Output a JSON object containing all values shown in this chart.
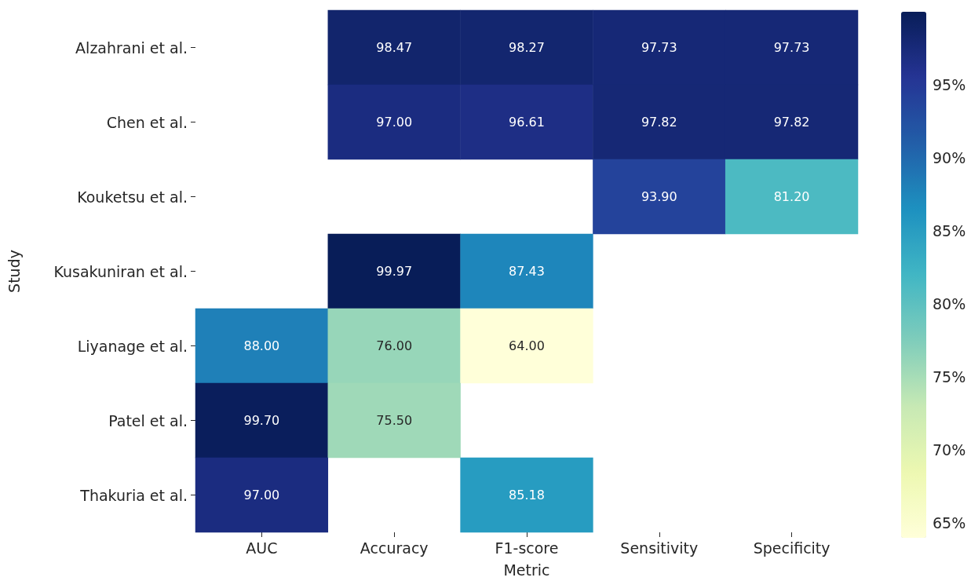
{
  "chart_data": {
    "type": "heatmap",
    "xlabel": "Metric",
    "ylabel": "Study",
    "categories": [
      "AUC",
      "Accuracy",
      "F1-score",
      "Sensitivity",
      "Specificity"
    ],
    "y_categories": [
      "Alzahrani et al.",
      "Chen et al.",
      "Kouketsu et al.",
      "Kusakuniran et al.",
      "Liyanage et al.",
      "Patel et al.",
      "Thakuria et al."
    ],
    "cells": [
      [
        null,
        98.47,
        98.27,
        97.73,
        97.73
      ],
      [
        null,
        97.0,
        96.61,
        97.82,
        97.82
      ],
      [
        null,
        null,
        null,
        93.9,
        81.2
      ],
      [
        null,
        99.97,
        87.43,
        null,
        null
      ],
      [
        88.0,
        76.0,
        64.0,
        null,
        null
      ],
      [
        99.7,
        75.5,
        null,
        null,
        null
      ],
      [
        97.0,
        null,
        85.18,
        null,
        null
      ]
    ],
    "cell_labels": [
      [
        null,
        "98.47",
        "98.27",
        "97.73",
        "97.73"
      ],
      [
        null,
        "97.00",
        "96.61",
        "97.82",
        "97.82"
      ],
      [
        null,
        null,
        null,
        "93.90",
        "81.20"
      ],
      [
        null,
        "99.97",
        "87.43",
        null,
        null
      ],
      [
        "88.00",
        "76.00",
        "64.00",
        null,
        null
      ],
      [
        "99.70",
        "75.50",
        null,
        null,
        null
      ],
      [
        "97.00",
        null,
        "85.18",
        null,
        null
      ]
    ],
    "clim": [
      64,
      99.97
    ],
    "cticks": [
      {
        "value": 65,
        "label": "65%"
      },
      {
        "value": 70,
        "label": "70%"
      },
      {
        "value": 75,
        "label": "75%"
      },
      {
        "value": 80,
        "label": "80%"
      },
      {
        "value": 85,
        "label": "85%"
      },
      {
        "value": 90,
        "label": "90%"
      },
      {
        "value": 95,
        "label": "95%"
      }
    ]
  }
}
